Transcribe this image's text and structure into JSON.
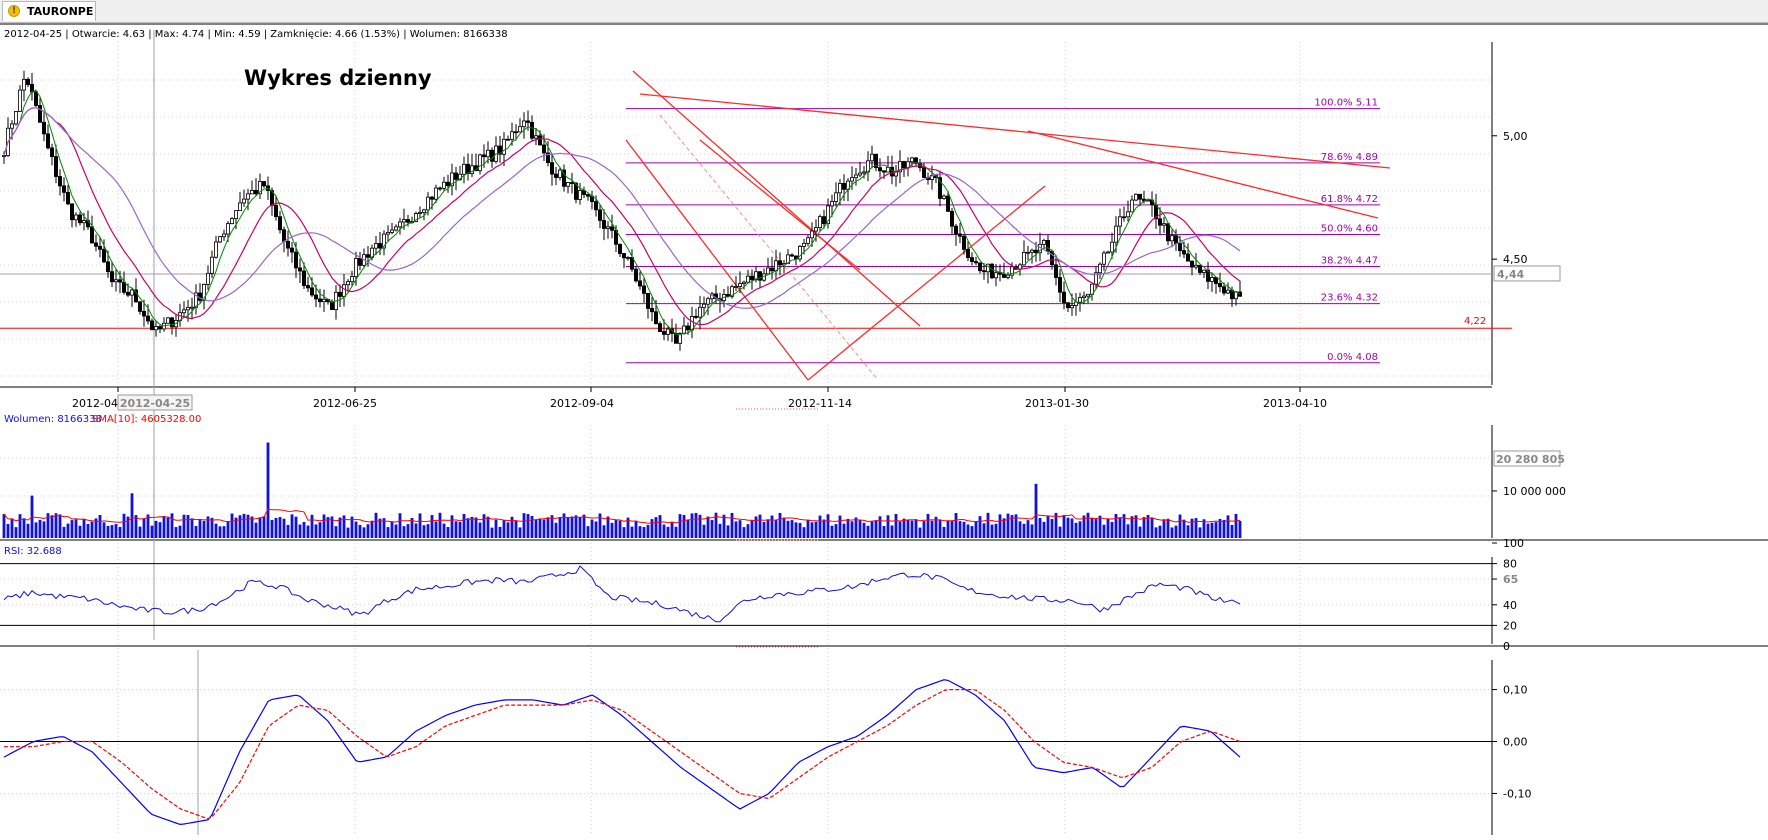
{
  "window": {
    "tab_label": "TAURONPE",
    "tab_icon": "warning-icon"
  },
  "info_bar": "2012-04-25 | Otwarcie: 4.63 | Max: 4.74 | Min: 4.59 | Zamknięcie: 4.66 (1.53%) | Wolumen: 8166338",
  "chart_data": [
    {
      "type": "candlestick",
      "title": "Wykres dzienny",
      "y_ticks": [
        "5,00",
        "4,50"
      ],
      "y_tick_values": [
        5.0,
        4.5
      ],
      "ylim": [
        3.99,
        5.38
      ],
      "x_ticks": [
        "2012-04",
        "2012-06-25",
        "2012-09-04",
        "2012-11-14",
        "2013-01-30",
        "2013-04-10"
      ],
      "x_cursor_label": "2012-04-25",
      "price_cursor_label": "4,44",
      "price_cursor": 4.44,
      "support_label": "4,22",
      "support_level": 4.22,
      "fib_levels": [
        {
          "label": "100.0% 5.11",
          "value": 5.11
        },
        {
          "label": "78.6% 4.89",
          "value": 4.89
        },
        {
          "label": "61.8% 4.72",
          "value": 4.72
        },
        {
          "label": "50.0% 4.60",
          "value": 4.6
        },
        {
          "label": "38.2% 4.47",
          "value": 4.47
        },
        {
          "label": "23.6% 4.32",
          "value": 4.32
        },
        {
          "label": "0.0% 4.08",
          "value": 4.08
        }
      ],
      "closes_approx": [
        4.95,
        5.25,
        4.95,
        4.7,
        4.6,
        4.4,
        4.35,
        4.2,
        4.27,
        4.35,
        4.6,
        4.75,
        4.8,
        4.55,
        4.38,
        4.3,
        4.45,
        4.55,
        4.6,
        4.7,
        4.78,
        4.85,
        4.9,
        4.95,
        5.08,
        4.9,
        4.8,
        4.72,
        4.6,
        4.45,
        4.25,
        4.15,
        4.3,
        4.35,
        4.4,
        4.45,
        4.5,
        4.55,
        4.7,
        4.85,
        4.9,
        4.85,
        4.9,
        4.8,
        4.6,
        4.45,
        4.45,
        4.5,
        4.55,
        4.3,
        4.35,
        4.55,
        4.75,
        4.7,
        4.55,
        4.45,
        4.4,
        4.33
      ]
    },
    {
      "type": "bar",
      "legend_volume": "Wolumen: 8166338",
      "legend_sma": "SMA[10]: 4605328.00",
      "y_ticks": [
        "10 000 000"
      ],
      "y_tick_values": [
        10000000
      ],
      "max_label": "20 280 805",
      "ylim": [
        0,
        24000000
      ],
      "spikes_approx": [
        {
          "x_frac": 0.215,
          "value": 20280805
        },
        {
          "x_frac": 0.835,
          "value": 11500000
        },
        {
          "x_frac": 0.105,
          "value": 9500000
        },
        {
          "x_frac": 0.024,
          "value": 9000000
        }
      ]
    },
    {
      "type": "line",
      "legend": "RSI: 32.688",
      "y_ticks": [
        "100",
        "80",
        "65",
        "40",
        "20",
        "0"
      ],
      "y_tick_values": [
        100,
        80,
        65,
        40,
        20,
        0
      ],
      "ylim": [
        0,
        100
      ],
      "levels": [
        80,
        20
      ],
      "values_approx": [
        45,
        52,
        48,
        46,
        40,
        35,
        33,
        35,
        45,
        62,
        58,
        45,
        38,
        30,
        45,
        55,
        58,
        62,
        64,
        62,
        68,
        75,
        48,
        44,
        40,
        32,
        25,
        45,
        50,
        52,
        55,
        58,
        66,
        70,
        66,
        55,
        50,
        47,
        45,
        44,
        35,
        48,
        60,
        56,
        46,
        40
      ]
    },
    {
      "type": "line",
      "y_ticks": [
        "0,10",
        "0,00",
        "-0,10"
      ],
      "y_tick_values": [
        0.1,
        0.0,
        -0.1
      ],
      "ylim": [
        -0.18,
        0.18
      ],
      "series": [
        {
          "color": "#0000ff",
          "values_approx": [
            -0.03,
            0.0,
            0.01,
            -0.02,
            -0.08,
            -0.14,
            -0.16,
            -0.15,
            -0.02,
            0.08,
            0.09,
            0.04,
            -0.04,
            -0.03,
            0.02,
            0.05,
            0.07,
            0.08,
            0.08,
            0.07,
            0.09,
            0.05,
            0.0,
            -0.05,
            -0.09,
            -0.13,
            -0.1,
            -0.04,
            -0.01,
            0.01,
            0.05,
            0.1,
            0.12,
            0.09,
            0.04,
            -0.05,
            -0.06,
            -0.05,
            -0.09,
            -0.03,
            0.03,
            0.02,
            -0.03
          ]
        },
        {
          "color": "#ff0000",
          "values_approx": [
            -0.01,
            -0.01,
            0.0,
            0.0,
            -0.04,
            -0.09,
            -0.13,
            -0.15,
            -0.08,
            0.03,
            0.07,
            0.06,
            0.01,
            -0.03,
            -0.01,
            0.03,
            0.05,
            0.07,
            0.07,
            0.07,
            0.08,
            0.06,
            0.02,
            -0.02,
            -0.06,
            -0.1,
            -0.11,
            -0.07,
            -0.03,
            0.0,
            0.03,
            0.07,
            0.1,
            0.1,
            0.06,
            0.0,
            -0.04,
            -0.05,
            -0.07,
            -0.05,
            0.0,
            0.02,
            0.0
          ]
        }
      ]
    }
  ]
}
